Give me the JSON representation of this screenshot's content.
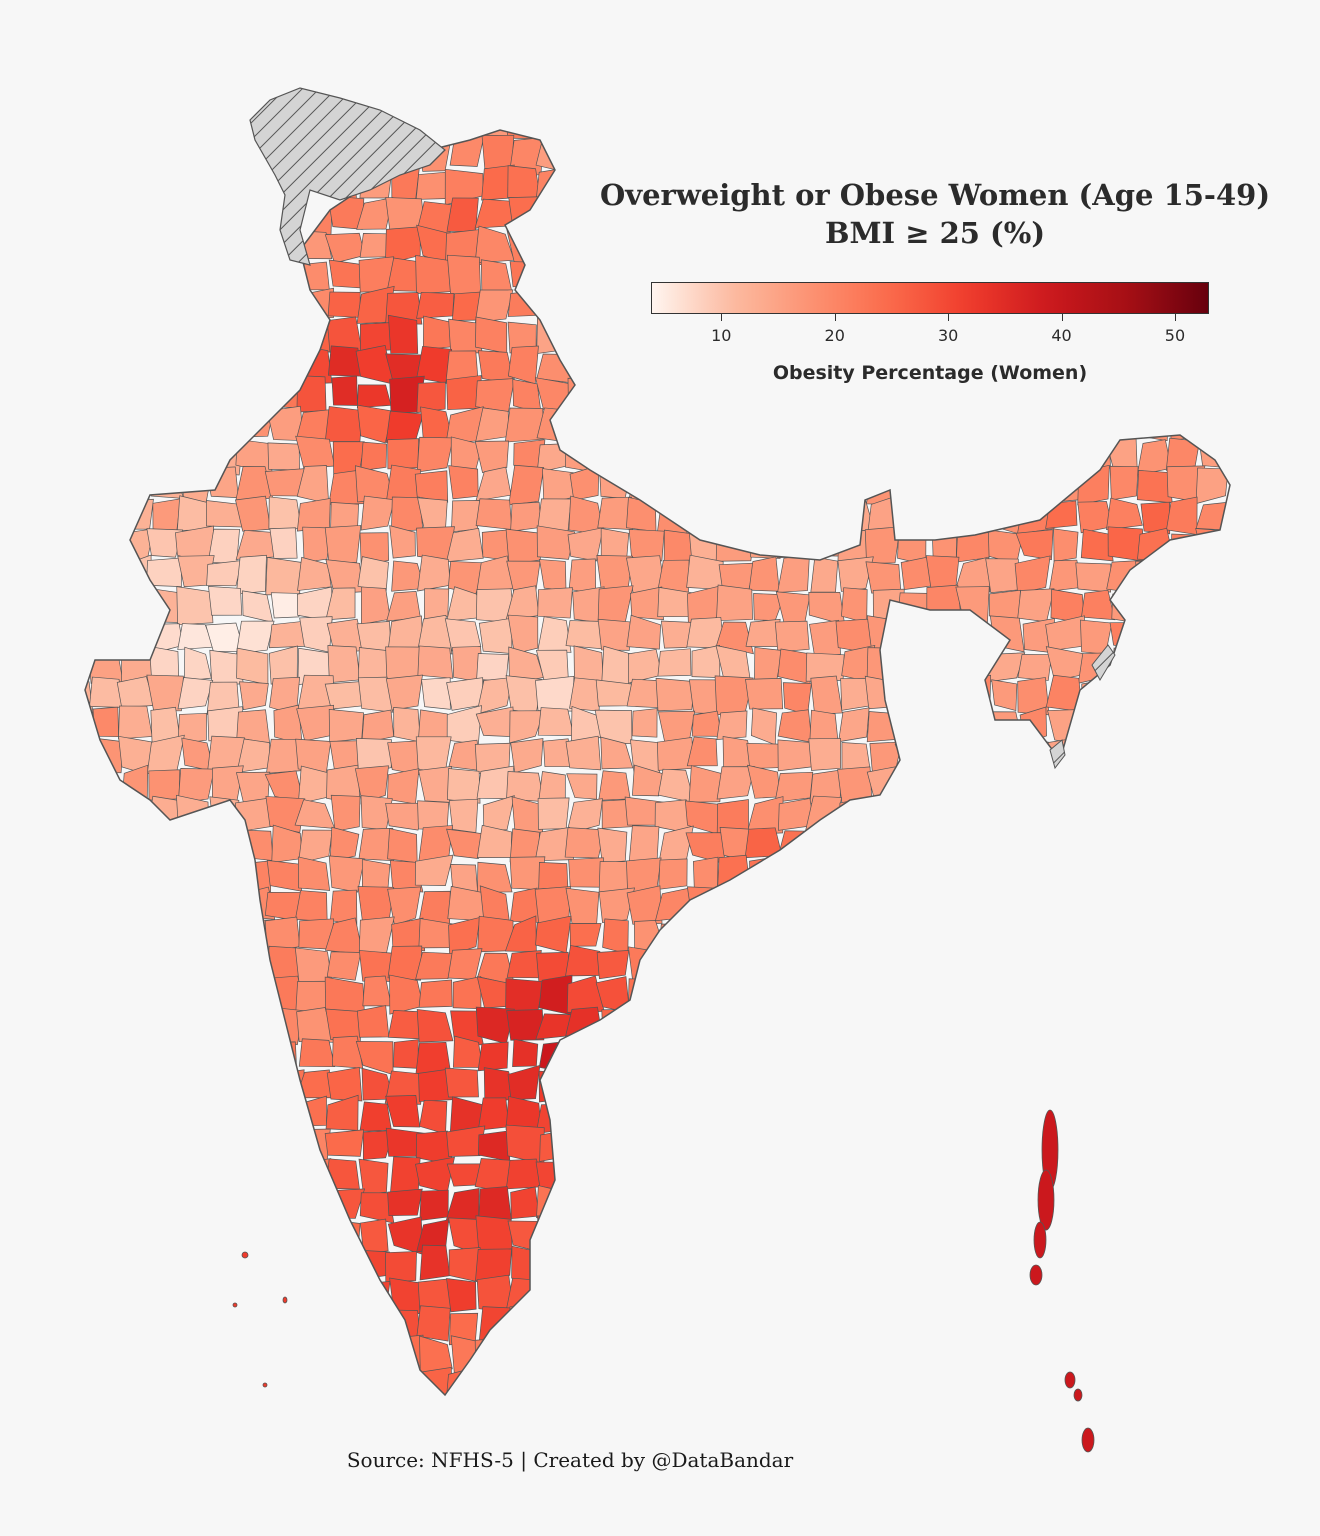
{
  "title_line1": "Overweight or Obese Women (Age 15-49)",
  "title_line2": "BMI ≥ 25 (%)",
  "colorbar": {
    "label": "Obesity Percentage (Women)",
    "ticks": [
      "10",
      "20",
      "30",
      "40",
      "50"
    ],
    "min": 3.8,
    "max": 53
  },
  "source": "Source: NFHS-5 | Created by @DataBandar",
  "colors": {
    "background": "#f7f7f7",
    "scale": [
      "#fff5f0",
      "#fcbba1",
      "#fc9272",
      "#fb6a4a",
      "#ef3b2c",
      "#cb181d",
      "#a50f15",
      "#67000d"
    ],
    "no_data": "#d4d4d4",
    "border": "#555555"
  }
}
